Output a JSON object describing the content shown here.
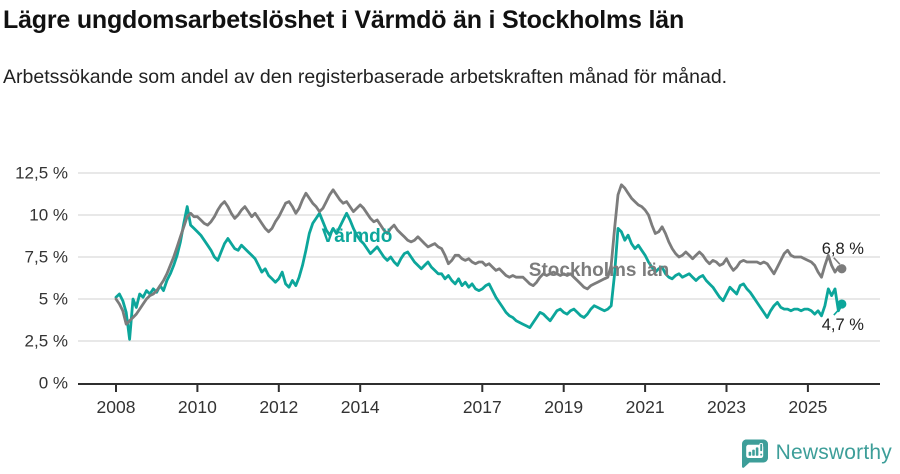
{
  "header": {
    "title": "Lägre ungdomsarbetslöshet i Värmdö än i Stockholms län",
    "subtitle": "Arbetssökande som andel av den registerbaserade arbetskraften månad för månad."
  },
  "footer": {
    "brand": "Newsworthy",
    "logo_icon": "newsworthy-badge"
  },
  "colors": {
    "varmdo": "#0ca69b",
    "stockholm": "#7c7c7c",
    "grid": "#d9d9d9",
    "axis": "#2f2f2f",
    "tick_text": "#333333",
    "end_label_text": "#222222",
    "brand": "#3d9e99"
  },
  "chart_data": {
    "type": "line",
    "title": "Lägre ungdomsarbetslöshet i Värmdö än i Stockholms län",
    "subtitle": "Arbetssökande som andel av den registerbaserade arbetskraften månad för månad.",
    "x_unit": "month",
    "x_start": "2008-01",
    "x_end": "2025-11",
    "ylim": [
      0,
      12.5
    ],
    "grid": true,
    "legend_position": "inline-labels",
    "x_ticks": [
      2008,
      2010,
      2012,
      2014,
      2017,
      2019,
      2021,
      2023,
      2025
    ],
    "x_tick_labels": [
      "2008",
      "2010",
      "2012",
      "2014",
      "2017",
      "2019",
      "2021",
      "2023",
      "2025"
    ],
    "y_tick_values": [
      0,
      2.5,
      5,
      7.5,
      10,
      12.5
    ],
    "y_tick_labels": [
      "0 %",
      "2,5 %",
      "5 %",
      "7,5 %",
      "10 %",
      "12,5 %"
    ],
    "series": [
      {
        "name": "Värmdö",
        "color_key": "varmdo",
        "end_label": "4,7 %",
        "last_value": 4.7,
        "values": [
          5.1,
          5.3,
          4.9,
          4.2,
          2.6,
          5.0,
          4.5,
          5.3,
          5.1,
          5.5,
          5.3,
          5.6,
          5.4,
          5.8,
          5.5,
          6.1,
          6.5,
          7.0,
          7.6,
          8.4,
          9.5,
          10.5,
          9.4,
          9.2,
          9.0,
          8.8,
          8.5,
          8.2,
          7.9,
          7.5,
          7.3,
          7.8,
          8.3,
          8.6,
          8.3,
          8.0,
          7.9,
          8.2,
          8.0,
          7.8,
          7.6,
          7.4,
          7.0,
          6.6,
          6.8,
          6.4,
          6.2,
          6.0,
          6.2,
          6.6,
          5.9,
          5.7,
          6.1,
          5.8,
          6.3,
          7.0,
          7.9,
          8.9,
          9.5,
          9.8,
          10.1,
          9.6,
          9.1,
          8.8,
          9.2,
          8.9,
          9.3,
          9.7,
          10.1,
          9.7,
          9.2,
          8.8,
          8.5,
          8.3,
          8.0,
          7.7,
          7.9,
          8.1,
          7.8,
          7.5,
          7.3,
          7.5,
          7.2,
          7.0,
          7.4,
          7.7,
          7.8,
          7.5,
          7.2,
          7.0,
          6.8,
          7.0,
          7.2,
          6.9,
          6.7,
          6.5,
          6.5,
          6.2,
          6.4,
          6.1,
          5.9,
          6.2,
          5.8,
          6.0,
          5.7,
          5.9,
          5.6,
          5.5,
          5.6,
          5.8,
          5.9,
          5.5,
          5.1,
          4.8,
          4.5,
          4.2,
          4.0,
          3.9,
          3.7,
          3.6,
          3.5,
          3.4,
          3.3,
          3.6,
          3.9,
          4.2,
          4.1,
          3.9,
          3.7,
          4.0,
          4.3,
          4.4,
          4.2,
          4.1,
          4.3,
          4.4,
          4.2,
          4.0,
          3.9,
          4.1,
          4.4,
          4.6,
          4.5,
          4.4,
          4.3,
          4.4,
          4.6,
          6.5,
          9.2,
          9.0,
          8.5,
          8.8,
          8.3,
          8.0,
          8.2,
          7.9,
          7.6,
          7.2,
          6.9,
          6.6,
          6.8,
          6.9,
          6.5,
          6.3,
          6.2,
          6.4,
          6.5,
          6.3,
          6.4,
          6.5,
          6.3,
          6.1,
          6.3,
          6.4,
          6.1,
          5.9,
          5.7,
          5.4,
          5.1,
          4.9,
          5.3,
          5.7,
          5.5,
          5.3,
          5.8,
          5.9,
          5.6,
          5.4,
          5.1,
          4.8,
          4.5,
          4.2,
          3.9,
          4.3,
          4.6,
          4.8,
          4.5,
          4.4,
          4.4,
          4.3,
          4.4,
          4.4,
          4.3,
          4.4,
          4.4,
          4.3,
          4.1,
          4.3,
          4.0,
          4.6,
          5.6,
          5.2,
          5.6,
          4.3,
          4.7
        ]
      },
      {
        "name": "Stockholms län",
        "color_key": "stockholm",
        "end_label": "6,8 %",
        "last_value": 6.8,
        "values": [
          5.0,
          4.7,
          4.3,
          3.5,
          3.7,
          3.9,
          4.1,
          4.4,
          4.7,
          5.0,
          5.2,
          5.3,
          5.5,
          5.8,
          6.1,
          6.5,
          7.0,
          7.5,
          8.1,
          8.7,
          9.3,
          9.9,
          10.1,
          9.9,
          9.9,
          9.7,
          9.5,
          9.4,
          9.6,
          9.9,
          10.3,
          10.6,
          10.8,
          10.5,
          10.1,
          9.8,
          10.0,
          10.3,
          10.5,
          10.2,
          9.9,
          10.1,
          9.8,
          9.5,
          9.2,
          9.0,
          9.2,
          9.6,
          9.9,
          10.3,
          10.7,
          10.8,
          10.5,
          10.1,
          10.4,
          10.9,
          11.3,
          11.0,
          10.7,
          10.5,
          10.2,
          10.4,
          10.8,
          11.2,
          11.5,
          11.2,
          10.9,
          10.7,
          10.8,
          10.5,
          10.2,
          10.4,
          10.6,
          10.4,
          10.1,
          9.8,
          9.6,
          9.7,
          9.4,
          9.1,
          8.9,
          9.2,
          9.4,
          9.1,
          8.9,
          8.7,
          8.5,
          8.4,
          8.5,
          8.7,
          8.5,
          8.3,
          8.1,
          8.2,
          8.3,
          8.1,
          8.0,
          7.6,
          7.1,
          7.3,
          7.6,
          7.6,
          7.4,
          7.3,
          7.4,
          7.2,
          7.1,
          7.2,
          7.2,
          7.0,
          7.1,
          6.9,
          6.7,
          6.8,
          6.6,
          6.4,
          6.3,
          6.4,
          6.3,
          6.3,
          6.3,
          6.1,
          5.9,
          5.8,
          6.0,
          6.3,
          6.5,
          6.4,
          6.5,
          6.6,
          6.5,
          6.4,
          6.5,
          6.4,
          6.5,
          6.3,
          6.1,
          5.9,
          5.7,
          5.6,
          5.8,
          5.9,
          6.0,
          6.1,
          6.2,
          6.3,
          7.0,
          9.2,
          11.2,
          11.8,
          11.6,
          11.3,
          11.0,
          10.8,
          10.6,
          10.5,
          10.3,
          10.0,
          9.4,
          8.9,
          9.0,
          9.3,
          8.9,
          8.4,
          8.0,
          7.7,
          7.5,
          7.6,
          7.8,
          7.6,
          7.4,
          7.6,
          7.8,
          7.6,
          7.3,
          7.1,
          7.3,
          7.2,
          7.0,
          7.1,
          7.4,
          7.0,
          6.7,
          6.9,
          7.2,
          7.3,
          7.2,
          7.2,
          7.2,
          7.2,
          7.1,
          7.2,
          7.1,
          6.8,
          6.5,
          6.9,
          7.3,
          7.7,
          7.9,
          7.6,
          7.5,
          7.5,
          7.5,
          7.4,
          7.3,
          7.2,
          7.0,
          6.6,
          6.3,
          7.0,
          7.6,
          7.0,
          6.6,
          6.9,
          6.8
        ]
      }
    ]
  }
}
